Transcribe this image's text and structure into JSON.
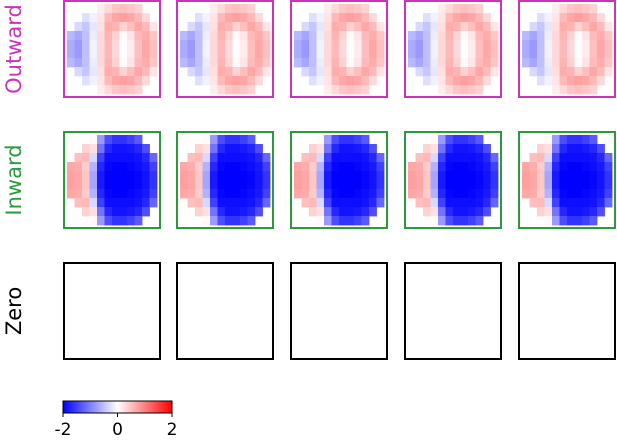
{
  "chart_data": {
    "type": "heatmap",
    "rows": [
      {
        "label": "Outward",
        "color": "#cc33bb",
        "grid": "outward",
        "panels": 5
      },
      {
        "label": "Inward",
        "color": "#2b9a3c",
        "grid": "inward",
        "panels": 5
      },
      {
        "label": "Zero",
        "color": "#000000",
        "grid": "zero",
        "panels": 5
      }
    ],
    "colorbar": {
      "min": -2,
      "max": 2,
      "ticks": [
        -2,
        0,
        2
      ],
      "tick_labels": [
        "-2",
        "0",
        "2"
      ],
      "colormap": [
        "#0000ff",
        "#ffffff",
        "#ff0000"
      ]
    },
    "grids": {
      "outward": [
        [
          null,
          null,
          null,
          null,
          0.15,
          0.3,
          0.45,
          0.5,
          0.45,
          0.35,
          null,
          null
        ],
        [
          null,
          null,
          -0.25,
          -0.1,
          0.2,
          0.55,
          0.7,
          0.75,
          0.7,
          0.55,
          0.3,
          null
        ],
        [
          null,
          -0.3,
          -0.45,
          -0.2,
          0.25,
          0.65,
          0.6,
          0.35,
          0.5,
          0.7,
          0.55,
          0.2
        ],
        [
          -0.55,
          -0.7,
          -0.5,
          -0.15,
          0.3,
          0.6,
          0.35,
          0.05,
          0.2,
          0.55,
          0.65,
          0.45
        ],
        [
          -0.65,
          -0.8,
          -0.5,
          -0.1,
          0.3,
          0.55,
          0.3,
          0.0,
          0.15,
          0.5,
          0.7,
          0.5
        ],
        [
          -0.65,
          -0.8,
          -0.5,
          -0.1,
          0.3,
          0.55,
          0.3,
          0.0,
          0.15,
          0.5,
          0.7,
          0.5
        ],
        [
          -0.55,
          -0.7,
          -0.5,
          -0.15,
          0.3,
          0.6,
          0.35,
          0.05,
          0.2,
          0.55,
          0.65,
          0.45
        ],
        [
          null,
          -0.3,
          -0.45,
          -0.2,
          0.25,
          0.65,
          0.6,
          0.35,
          0.5,
          0.7,
          0.55,
          0.2
        ],
        [
          null,
          null,
          -0.25,
          -0.1,
          0.2,
          0.55,
          0.7,
          0.75,
          0.7,
          0.55,
          0.3,
          null
        ],
        [
          null,
          null,
          null,
          null,
          0.15,
          0.3,
          0.45,
          0.5,
          0.45,
          0.35,
          null,
          null
        ]
      ],
      "inward": [
        [
          null,
          null,
          null,
          0.05,
          -0.8,
          -1.4,
          -1.6,
          -1.6,
          -1.5,
          -1.3,
          null,
          null
        ],
        [
          null,
          null,
          0.35,
          0.25,
          -1.1,
          -1.7,
          -1.85,
          -1.85,
          -1.8,
          -1.7,
          -1.4,
          null
        ],
        [
          null,
          0.5,
          0.55,
          -0.3,
          -1.5,
          -1.9,
          -1.9,
          -1.9,
          -1.9,
          -1.85,
          -1.7,
          -1.2
        ],
        [
          0.7,
          0.65,
          0.4,
          -0.6,
          -1.7,
          -1.95,
          -2.0,
          -2.0,
          -1.95,
          -1.9,
          -1.8,
          -1.5
        ],
        [
          0.75,
          0.7,
          0.45,
          -0.7,
          -1.8,
          -2.0,
          -2.0,
          -2.0,
          -2.0,
          -1.95,
          -1.85,
          -1.6
        ],
        [
          0.75,
          0.7,
          0.45,
          -0.7,
          -1.8,
          -2.0,
          -2.0,
          -2.0,
          -2.0,
          -1.95,
          -1.85,
          -1.6
        ],
        [
          0.7,
          0.65,
          0.4,
          -0.6,
          -1.7,
          -1.95,
          -2.0,
          -2.0,
          -1.95,
          -1.9,
          -1.8,
          -1.5
        ],
        [
          null,
          0.5,
          0.55,
          -0.3,
          -1.5,
          -1.9,
          -1.9,
          -1.9,
          -1.9,
          -1.85,
          -1.7,
          -1.2
        ],
        [
          null,
          null,
          0.35,
          0.25,
          -1.1,
          -1.7,
          -1.85,
          -1.85,
          -1.8,
          -1.7,
          -1.4,
          null
        ],
        [
          null,
          null,
          null,
          0.05,
          -0.8,
          -1.4,
          -1.6,
          -1.6,
          -1.5,
          -1.3,
          null,
          null
        ]
      ],
      "zero": []
    }
  }
}
